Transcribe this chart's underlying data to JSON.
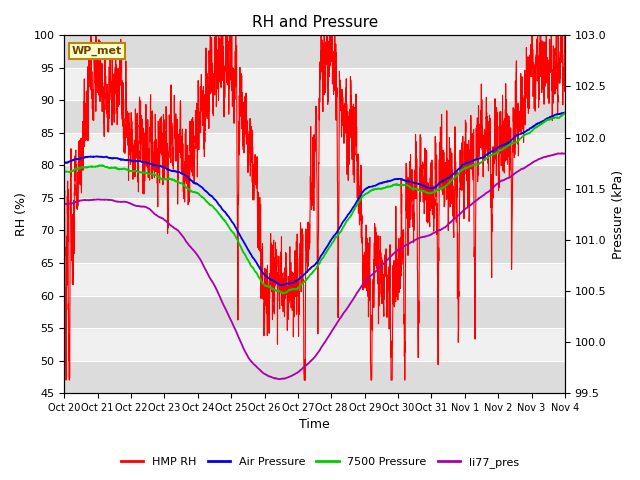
{
  "title": "RH and Pressure",
  "xlabel": "Time",
  "ylabel_left": "RH (%)",
  "ylabel_right": "Pressure (kPa)",
  "ylim_left": [
    45,
    100
  ],
  "ylim_right": [
    99.5,
    103.0
  ],
  "label_box": "WP_met",
  "rh_color": "#FF0000",
  "ap_color": "#0000EE",
  "p7500_color": "#00CC00",
  "li77_color": "#AA00AA",
  "tick_labels": [
    "Oct 20",
    "Oct 21",
    "Oct 22",
    "Oct 23",
    "Oct 24",
    "Oct 25",
    "Oct 26",
    "Oct 27",
    "Oct 28",
    "Oct 29",
    "Oct 30",
    "Oct 31",
    "Nov 1",
    "Nov 2",
    "Nov 3",
    "Nov 4"
  ],
  "background_color": "#FFFFFF",
  "plot_bg_light": "#F0F0F0",
  "plot_bg_dark": "#DCDCDC",
  "figsize": [
    6.4,
    4.8
  ],
  "dpi": 100
}
